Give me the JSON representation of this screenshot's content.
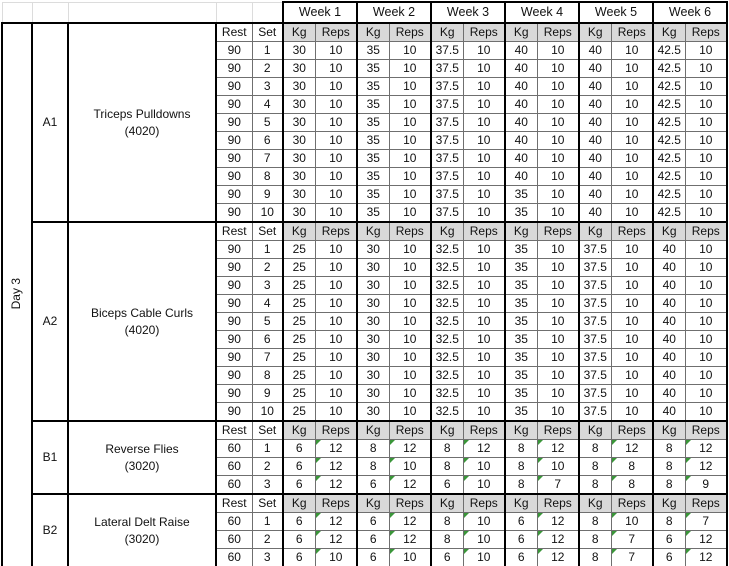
{
  "table": {
    "day_label": "Day 3",
    "week_headers": [
      "Week 1",
      "Week 2",
      "Week 3",
      "Week 4",
      "Week 5",
      "Week 6"
    ],
    "col_headers": {
      "rest": "Rest",
      "set": "Set",
      "kg": "Kg",
      "reps": "Reps"
    },
    "sections": [
      {
        "id": "A1",
        "exercise": "Triceps Pulldowns",
        "tempo": "(4020)",
        "reps_flagged": false,
        "sets": [
          {
            "rest": "90",
            "set": "1",
            "weeks": [
              [
                "30",
                "10"
              ],
              [
                "35",
                "10"
              ],
              [
                "37.5",
                "10"
              ],
              [
                "40",
                "10"
              ],
              [
                "40",
                "10"
              ],
              [
                "42.5",
                "10"
              ]
            ]
          },
          {
            "rest": "90",
            "set": "2",
            "weeks": [
              [
                "30",
                "10"
              ],
              [
                "35",
                "10"
              ],
              [
                "37.5",
                "10"
              ],
              [
                "40",
                "10"
              ],
              [
                "40",
                "10"
              ],
              [
                "42.5",
                "10"
              ]
            ]
          },
          {
            "rest": "90",
            "set": "3",
            "weeks": [
              [
                "30",
                "10"
              ],
              [
                "35",
                "10"
              ],
              [
                "37.5",
                "10"
              ],
              [
                "40",
                "10"
              ],
              [
                "40",
                "10"
              ],
              [
                "42.5",
                "10"
              ]
            ]
          },
          {
            "rest": "90",
            "set": "4",
            "weeks": [
              [
                "30",
                "10"
              ],
              [
                "35",
                "10"
              ],
              [
                "37.5",
                "10"
              ],
              [
                "40",
                "10"
              ],
              [
                "40",
                "10"
              ],
              [
                "42.5",
                "10"
              ]
            ]
          },
          {
            "rest": "90",
            "set": "5",
            "weeks": [
              [
                "30",
                "10"
              ],
              [
                "35",
                "10"
              ],
              [
                "37.5",
                "10"
              ],
              [
                "40",
                "10"
              ],
              [
                "40",
                "10"
              ],
              [
                "42.5",
                "10"
              ]
            ]
          },
          {
            "rest": "90",
            "set": "6",
            "weeks": [
              [
                "30",
                "10"
              ],
              [
                "35",
                "10"
              ],
              [
                "37.5",
                "10"
              ],
              [
                "40",
                "10"
              ],
              [
                "40",
                "10"
              ],
              [
                "42.5",
                "10"
              ]
            ]
          },
          {
            "rest": "90",
            "set": "7",
            "weeks": [
              [
                "30",
                "10"
              ],
              [
                "35",
                "10"
              ],
              [
                "37.5",
                "10"
              ],
              [
                "40",
                "10"
              ],
              [
                "40",
                "10"
              ],
              [
                "42.5",
                "10"
              ]
            ]
          },
          {
            "rest": "90",
            "set": "8",
            "weeks": [
              [
                "30",
                "10"
              ],
              [
                "35",
                "10"
              ],
              [
                "37.5",
                "10"
              ],
              [
                "40",
                "10"
              ],
              [
                "40",
                "10"
              ],
              [
                "42.5",
                "10"
              ]
            ]
          },
          {
            "rest": "90",
            "set": "9",
            "weeks": [
              [
                "30",
                "10"
              ],
              [
                "35",
                "10"
              ],
              [
                "37.5",
                "10"
              ],
              [
                "35",
                "10"
              ],
              [
                "40",
                "10"
              ],
              [
                "42.5",
                "10"
              ]
            ]
          },
          {
            "rest": "90",
            "set": "10",
            "weeks": [
              [
                "30",
                "10"
              ],
              [
                "35",
                "10"
              ],
              [
                "37.5",
                "10"
              ],
              [
                "35",
                "10"
              ],
              [
                "40",
                "10"
              ],
              [
                "42.5",
                "10"
              ]
            ]
          }
        ]
      },
      {
        "id": "A2",
        "exercise": "Biceps Cable Curls",
        "tempo": "(4020)",
        "reps_flagged": false,
        "sets": [
          {
            "rest": "90",
            "set": "1",
            "weeks": [
              [
                "25",
                "10"
              ],
              [
                "30",
                "10"
              ],
              [
                "32.5",
                "10"
              ],
              [
                "35",
                "10"
              ],
              [
                "37.5",
                "10"
              ],
              [
                "40",
                "10"
              ]
            ]
          },
          {
            "rest": "90",
            "set": "2",
            "weeks": [
              [
                "25",
                "10"
              ],
              [
                "30",
                "10"
              ],
              [
                "32.5",
                "10"
              ],
              [
                "35",
                "10"
              ],
              [
                "37.5",
                "10"
              ],
              [
                "40",
                "10"
              ]
            ]
          },
          {
            "rest": "90",
            "set": "3",
            "weeks": [
              [
                "25",
                "10"
              ],
              [
                "30",
                "10"
              ],
              [
                "32.5",
                "10"
              ],
              [
                "35",
                "10"
              ],
              [
                "37.5",
                "10"
              ],
              [
                "40",
                "10"
              ]
            ]
          },
          {
            "rest": "90",
            "set": "4",
            "weeks": [
              [
                "25",
                "10"
              ],
              [
                "30",
                "10"
              ],
              [
                "32.5",
                "10"
              ],
              [
                "35",
                "10"
              ],
              [
                "37.5",
                "10"
              ],
              [
                "40",
                "10"
              ]
            ]
          },
          {
            "rest": "90",
            "set": "5",
            "weeks": [
              [
                "25",
                "10"
              ],
              [
                "30",
                "10"
              ],
              [
                "32.5",
                "10"
              ],
              [
                "35",
                "10"
              ],
              [
                "37.5",
                "10"
              ],
              [
                "40",
                "10"
              ]
            ]
          },
          {
            "rest": "90",
            "set": "6",
            "weeks": [
              [
                "25",
                "10"
              ],
              [
                "30",
                "10"
              ],
              [
                "32.5",
                "10"
              ],
              [
                "35",
                "10"
              ],
              [
                "37.5",
                "10"
              ],
              [
                "40",
                "10"
              ]
            ]
          },
          {
            "rest": "90",
            "set": "7",
            "weeks": [
              [
                "25",
                "10"
              ],
              [
                "30",
                "10"
              ],
              [
                "32.5",
                "10"
              ],
              [
                "35",
                "10"
              ],
              [
                "37.5",
                "10"
              ],
              [
                "40",
                "10"
              ]
            ]
          },
          {
            "rest": "90",
            "set": "8",
            "weeks": [
              [
                "25",
                "10"
              ],
              [
                "30",
                "10"
              ],
              [
                "32.5",
                "10"
              ],
              [
                "35",
                "10"
              ],
              [
                "37.5",
                "10"
              ],
              [
                "40",
                "10"
              ]
            ]
          },
          {
            "rest": "90",
            "set": "9",
            "weeks": [
              [
                "25",
                "10"
              ],
              [
                "30",
                "10"
              ],
              [
                "32.5",
                "10"
              ],
              [
                "35",
                "10"
              ],
              [
                "37.5",
                "10"
              ],
              [
                "40",
                "10"
              ]
            ]
          },
          {
            "rest": "90",
            "set": "10",
            "weeks": [
              [
                "25",
                "10"
              ],
              [
                "30",
                "10"
              ],
              [
                "32.5",
                "10"
              ],
              [
                "35",
                "10"
              ],
              [
                "37.5",
                "10"
              ],
              [
                "40",
                "10"
              ]
            ]
          }
        ]
      },
      {
        "id": "B1",
        "exercise": "Reverse Flies",
        "tempo": "(3020)",
        "reps_flagged": true,
        "sets": [
          {
            "rest": "60",
            "set": "1",
            "weeks": [
              [
                "6",
                "12"
              ],
              [
                "8",
                "12"
              ],
              [
                "8",
                "12"
              ],
              [
                "8",
                "12"
              ],
              [
                "8",
                "12"
              ],
              [
                "8",
                "12"
              ]
            ]
          },
          {
            "rest": "60",
            "set": "2",
            "weeks": [
              [
                "6",
                "12"
              ],
              [
                "8",
                "10"
              ],
              [
                "8",
                "10"
              ],
              [
                "8",
                "10"
              ],
              [
                "8",
                "8"
              ],
              [
                "8",
                "12"
              ]
            ]
          },
          {
            "rest": "60",
            "set": "3",
            "weeks": [
              [
                "6",
                "12"
              ],
              [
                "6",
                "12"
              ],
              [
                "6",
                "10"
              ],
              [
                "8",
                "7"
              ],
              [
                "8",
                "8"
              ],
              [
                "8",
                "9"
              ]
            ]
          }
        ]
      },
      {
        "id": "B2",
        "exercise": "Lateral Delt Raise",
        "tempo": "(3020)",
        "reps_flagged": true,
        "sets": [
          {
            "rest": "60",
            "set": "1",
            "weeks": [
              [
                "6",
                "12"
              ],
              [
                "6",
                "12"
              ],
              [
                "8",
                "10"
              ],
              [
                "6",
                "12"
              ],
              [
                "8",
                "10"
              ],
              [
                "8",
                "7"
              ]
            ]
          },
          {
            "rest": "60",
            "set": "2",
            "weeks": [
              [
                "6",
                "12"
              ],
              [
                "6",
                "12"
              ],
              [
                "8",
                "10"
              ],
              [
                "6",
                "12"
              ],
              [
                "8",
                "7"
              ],
              [
                "6",
                "12"
              ]
            ]
          },
          {
            "rest": "60",
            "set": "3",
            "weeks": [
              [
                "6",
                "10"
              ],
              [
                "6",
                "10"
              ],
              [
                "6",
                "10"
              ],
              [
                "6",
                "12"
              ],
              [
                "8",
                "7"
              ],
              [
                "6",
                "12"
              ]
            ]
          }
        ]
      }
    ]
  },
  "colors": {
    "header_fill": "#d9d9d9",
    "grid_line": "#6f6f6f",
    "section_border": "#000000",
    "flag_green": "#3a9639",
    "faint_grid": "#dcdcdc"
  }
}
